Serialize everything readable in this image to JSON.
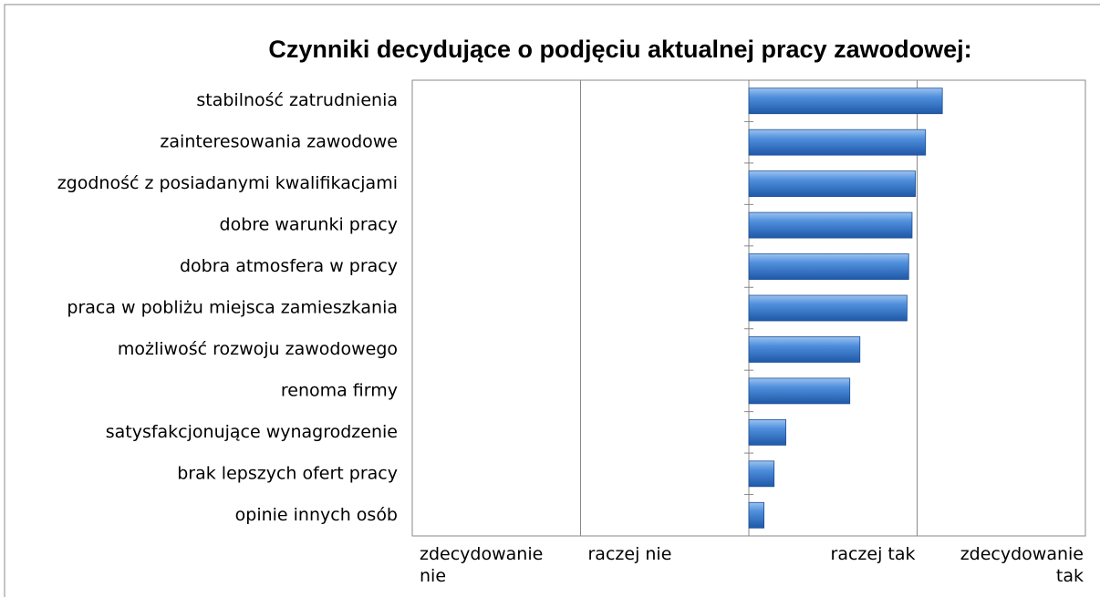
{
  "chart_data": {
    "type": "bar",
    "orientation": "horizontal",
    "title": "Czynniki decydujące o podjęciu aktualnej pracy zawodowej:",
    "categories": [
      "stabilność zatrudnienia",
      "zainteresowania zawodowe",
      "zgodność z posiadanymi kwalifikacjami",
      "dobre warunki pracy",
      "dobra atmosfera w pracy",
      "praca w pobliżu miejsca zamieszkania",
      "możliwość rozwoju zawodowego",
      "renoma firmy",
      "satysfakcjonujące wynagrodzenie",
      "brak lepszych ofert pracy",
      "opinie innych osób"
    ],
    "values": [
      1.15,
      1.05,
      0.99,
      0.97,
      0.95,
      0.94,
      0.66,
      0.6,
      0.22,
      0.15,
      0.09
    ],
    "color": "#3a78c9",
    "xlim": [
      -2,
      2
    ],
    "xticks": [
      {
        "value": -2,
        "label": "zdecydowanie nie"
      },
      {
        "value": -1,
        "label": "raczej nie"
      },
      {
        "value": 1,
        "label": "raczej tak"
      },
      {
        "value": 2,
        "label": "zdecydowanie tak"
      }
    ],
    "grid": true
  }
}
